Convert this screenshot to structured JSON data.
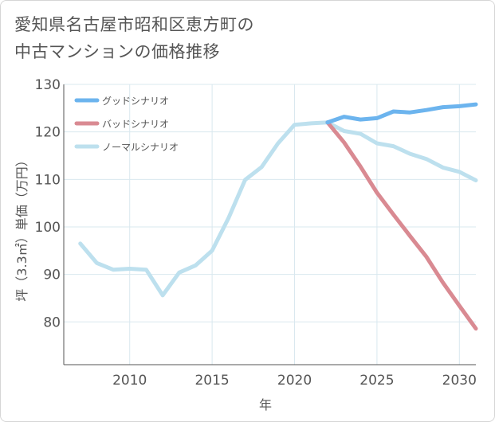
{
  "title_lines": [
    "愛知県名古屋市昭和区恵方町の",
    "中古マンションの価格推移"
  ],
  "colors": {
    "good": "#6cb4ee",
    "bad": "#d98a92",
    "normal": "#bde0ee",
    "grid": "#d9e8ef",
    "axis": "#555555"
  },
  "chart_data": {
    "type": "line",
    "xlabel": "年",
    "ylabel": "坪（3.3㎡）単価（万円）",
    "xlim": [
      2006,
      2031
    ],
    "ylim": [
      71,
      130
    ],
    "xticks": [
      2010,
      2015,
      2020,
      2025,
      2030
    ],
    "yticks": [
      80,
      90,
      100,
      110,
      120,
      130
    ],
    "grid": true,
    "legend_position": "top-left",
    "series": [
      {
        "name": "グッドシナリオ",
        "key": "good",
        "x": [
          2022,
          2023,
          2024,
          2025,
          2026,
          2027,
          2028,
          2029,
          2030,
          2031
        ],
        "y": [
          122.0,
          123.2,
          122.6,
          122.9,
          124.3,
          124.1,
          124.6,
          125.2,
          125.4,
          125.8
        ]
      },
      {
        "name": "バッドシナリオ",
        "key": "bad",
        "x": [
          2022,
          2023,
          2024,
          2025,
          2026,
          2027,
          2028,
          2029,
          2030,
          2031
        ],
        "y": [
          122.0,
          117.8,
          112.7,
          107.2,
          102.6,
          98.1,
          93.7,
          88.3,
          83.4,
          78.6
        ]
      },
      {
        "name": "ノーマルシナリオ",
        "key": "normal",
        "x": [
          2007,
          2008,
          2009,
          2010,
          2011,
          2012,
          2013,
          2014,
          2015,
          2016,
          2017,
          2018,
          2019,
          2020,
          2021,
          2022,
          2023,
          2024,
          2025,
          2026,
          2027,
          2028,
          2029,
          2030,
          2031
        ],
        "y": [
          96.5,
          92.4,
          91.0,
          91.2,
          91.0,
          85.6,
          90.4,
          91.9,
          95.0,
          101.9,
          109.9,
          112.6,
          117.6,
          121.5,
          121.8,
          122.0,
          120.2,
          119.6,
          117.6,
          117.0,
          115.4,
          114.3,
          112.5,
          111.6,
          109.8
        ]
      }
    ]
  }
}
